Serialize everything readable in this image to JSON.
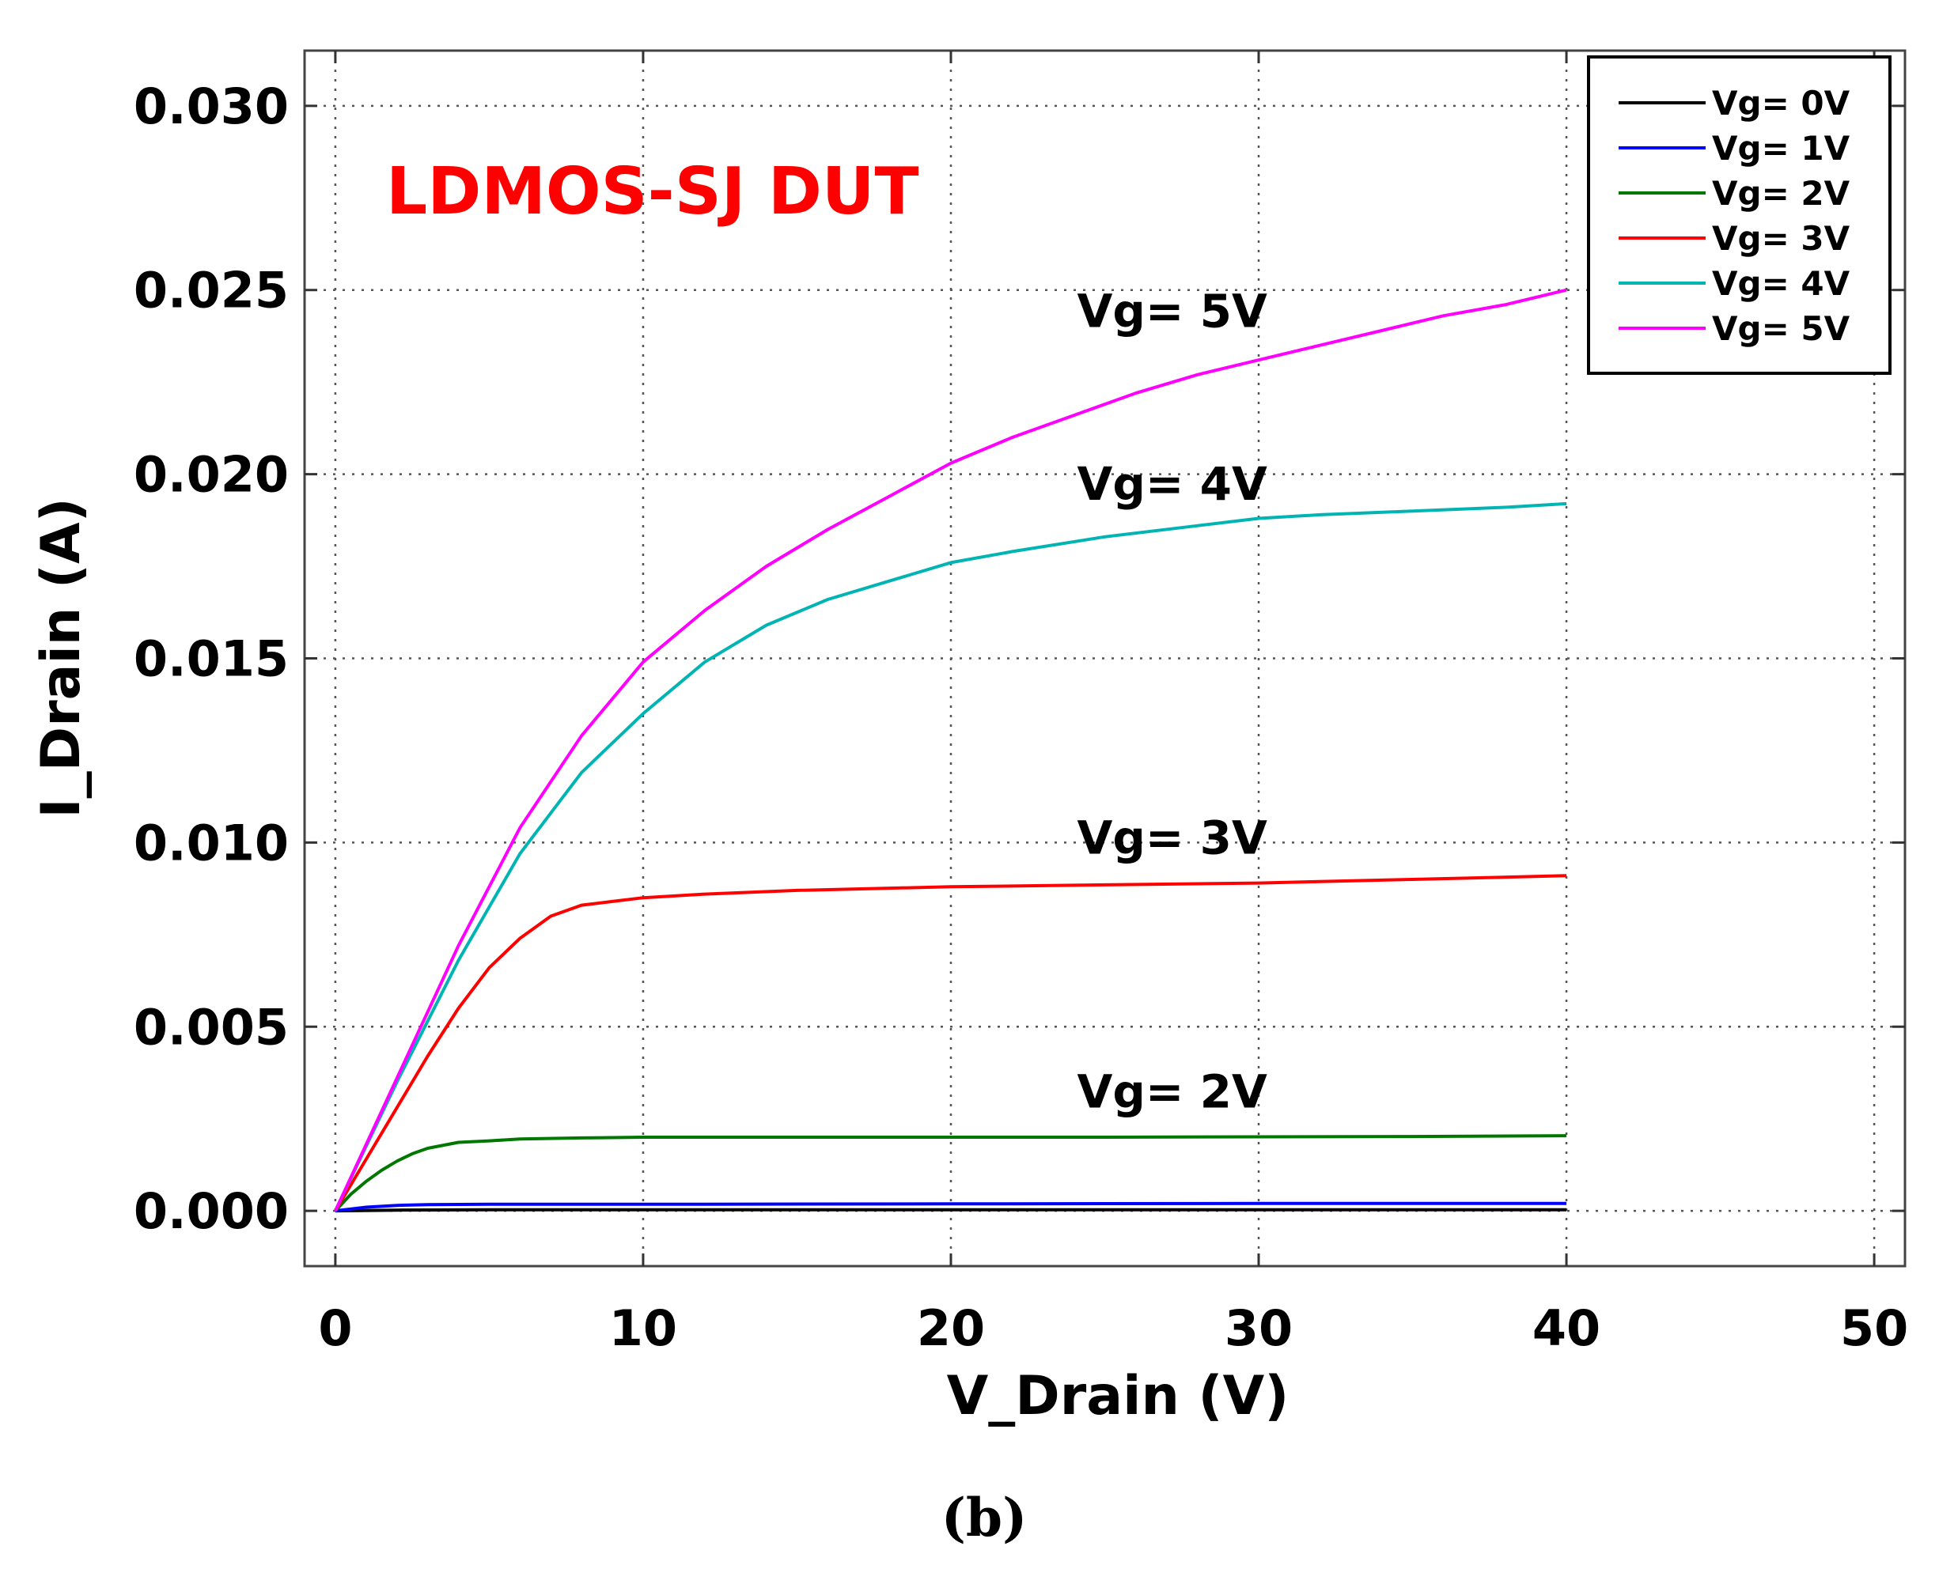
{
  "chart_data": {
    "type": "line",
    "title": "LDMOS-SJ DUT",
    "title_color": "#ff0000",
    "xlabel": "V_Drain (V)",
    "ylabel": "I_Drain (A)",
    "xlim": [
      -1,
      51
    ],
    "ylim": [
      -0.0015,
      0.0315
    ],
    "xticks": [
      0,
      10,
      20,
      30,
      40,
      50
    ],
    "xtick_labels": [
      "0",
      "10",
      "20",
      "30",
      "40",
      "50"
    ],
    "yticks": [
      0.0,
      0.005,
      0.01,
      0.015,
      0.02,
      0.025,
      0.03
    ],
    "ytick_labels": [
      "0.000",
      "0.005",
      "0.010",
      "0.015",
      "0.020",
      "0.025",
      "0.030"
    ],
    "grid": true,
    "legend_position": "top-right",
    "series": [
      {
        "name": "Vg= 0V",
        "color": "#000000",
        "x": [
          0,
          2,
          5,
          10,
          20,
          30,
          40
        ],
        "y": [
          0,
          2e-05,
          3e-05,
          3e-05,
          3e-05,
          3e-05,
          3e-05
        ]
      },
      {
        "name": "Vg= 1V",
        "color": "#0000ff",
        "x": [
          0,
          1,
          2,
          3,
          5,
          10,
          20,
          30,
          40
        ],
        "y": [
          0,
          0.0001,
          0.00015,
          0.00017,
          0.00018,
          0.00018,
          0.00019,
          0.0002,
          0.0002
        ]
      },
      {
        "name": "Vg= 2V",
        "color": "#007800",
        "x": [
          0,
          0.5,
          1,
          1.5,
          2,
          2.5,
          3,
          4,
          5,
          6,
          8,
          10,
          15,
          20,
          25,
          30,
          35,
          40
        ],
        "y": [
          0,
          0.00045,
          0.0008,
          0.0011,
          0.00135,
          0.00155,
          0.0017,
          0.00186,
          0.0019,
          0.00195,
          0.00198,
          0.002,
          0.002,
          0.002,
          0.002,
          0.00201,
          0.00202,
          0.00204
        ]
      },
      {
        "name": "Vg= 3V",
        "color": "#ff0000",
        "x": [
          0,
          1,
          2,
          3,
          4,
          5,
          6,
          7,
          8,
          9,
          10,
          12,
          15,
          20,
          25,
          30,
          35,
          40
        ],
        "y": [
          0,
          0.0014,
          0.0028,
          0.0042,
          0.0055,
          0.0066,
          0.0074,
          0.008,
          0.0083,
          0.0084,
          0.0085,
          0.0086,
          0.0087,
          0.0088,
          0.00885,
          0.0089,
          0.009,
          0.0091
        ]
      },
      {
        "name": "Vg= 4V",
        "color": "#00b4b4",
        "x": [
          0,
          2,
          4,
          6,
          8,
          10,
          12,
          14,
          16,
          18,
          20,
          22,
          25,
          28,
          30,
          32,
          35,
          38,
          40
        ],
        "y": [
          0,
          0.0035,
          0.0068,
          0.0097,
          0.0119,
          0.0135,
          0.0149,
          0.0159,
          0.0166,
          0.0171,
          0.0176,
          0.0179,
          0.0183,
          0.0186,
          0.0188,
          0.0189,
          0.019,
          0.0191,
          0.0192
        ]
      },
      {
        "name": "Vg= 5V",
        "color": "#ff00ff",
        "x": [
          0,
          2,
          4,
          6,
          8,
          10,
          12,
          14,
          16,
          18,
          20,
          22,
          24,
          26,
          28,
          30,
          32,
          34,
          36,
          38,
          40
        ],
        "y": [
          0,
          0.0036,
          0.0072,
          0.0104,
          0.0129,
          0.0149,
          0.0163,
          0.0175,
          0.0185,
          0.0194,
          0.0203,
          0.021,
          0.0216,
          0.0222,
          0.0227,
          0.0231,
          0.0235,
          0.0239,
          0.0243,
          0.0246,
          0.025
        ]
      }
    ],
    "annotations": [
      {
        "text": "Vg= 5V",
        "x": 24.1,
        "y": 0.024
      },
      {
        "text": "Vg= 4V",
        "x": 24.1,
        "y": 0.0193
      },
      {
        "text": "Vg= 3V",
        "x": 24.1,
        "y": 0.0097
      },
      {
        "text": "Vg= 2V",
        "x": 24.1,
        "y": 0.0028
      }
    ]
  },
  "caption": "(b)"
}
